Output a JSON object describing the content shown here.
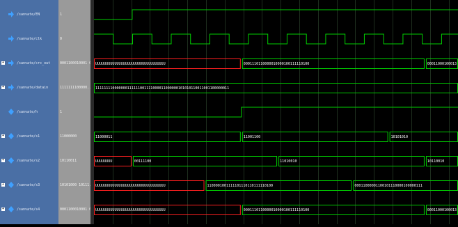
{
  "colors": {
    "wave": "#00d000",
    "undefined_bus": "#ff2020",
    "grid": "#1e2e1e",
    "names_bg": "#4a6fa5",
    "values_bg": "#9a9a9a",
    "icon": "#3fa0ff"
  },
  "signals": [
    {
      "name": "/sanvate/EN",
      "value": "1",
      "expandable": false,
      "icon": "signal-arrow-icon"
    },
    {
      "name": "/sanvate/clk",
      "value": "0",
      "expandable": false,
      "icon": "signal-arrow-icon"
    },
    {
      "name": "/sanvate/crc_out",
      "value": "0001100010001 0...",
      "expandable": true,
      "icon": "signal-arrow-icon"
    },
    {
      "name": "/sanvate/datain",
      "value": "1111111100000...",
      "expandable": true,
      "icon": "signal-arrow-icon"
    },
    {
      "name": "/sanvate/h",
      "value": "1",
      "expandable": false,
      "icon": "signal-diamond-icon"
    },
    {
      "name": "/sanvate/s1",
      "value": "11000000",
      "expandable": true,
      "icon": "signal-diamond-icon"
    },
    {
      "name": "/sanvate/s2",
      "value": "10110011",
      "expandable": true,
      "icon": "signal-diamond-icon"
    },
    {
      "name": "/sanvate/s3",
      "value": "10101000 10111...",
      "expandable": true,
      "icon": "signal-diamond-icon"
    },
    {
      "name": "/sanvate/s4",
      "value": "0001100010001 0...",
      "expandable": true,
      "icon": "signal-diamond-icon"
    }
  ],
  "waves": {
    "EN": {
      "type": "bit",
      "steps": [
        [
          0,
          0
        ],
        [
          0.105,
          1
        ]
      ]
    },
    "clk": {
      "type": "bit",
      "period": 0.1061,
      "start_high": true
    },
    "h": {
      "type": "bit",
      "steps": [
        [
          0,
          0
        ],
        [
          0.405,
          1
        ]
      ]
    },
    "buses": [
      {
        "row": 2,
        "segments": [
          {
            "from": 0,
            "to": 0.405,
            "label": "UUUUUUUUUUUUUUUUUUUUUUUUUUUUUUUUU",
            "undefined": true
          },
          {
            "from": 0.405,
            "to": 0.91,
            "label": "0001110110000010000100111110100",
            "undefined": false
          },
          {
            "from": 0.91,
            "to": 1.0,
            "label": "00011000100013",
            "undefined": false
          }
        ]
      },
      {
        "row": 3,
        "segments": [
          {
            "from": 0,
            "to": 1.0,
            "label": "111111110000000111111001111000011000000101010110011001100000011",
            "undefined": false
          }
        ]
      },
      {
        "row": 5,
        "segments": [
          {
            "from": 0,
            "to": 0.405,
            "label": "11000011",
            "undefined": false
          },
          {
            "from": 0.405,
            "to": 0.81,
            "label": "11001100",
            "undefined": false
          },
          {
            "from": 0.81,
            "to": 1.0,
            "label": "10101010",
            "undefined": false
          }
        ]
      },
      {
        "row": 6,
        "segments": [
          {
            "from": 0,
            "to": 0.105,
            "label": "UUUUUUUU",
            "undefined": true
          },
          {
            "from": 0.105,
            "to": 0.505,
            "label": "00111100",
            "undefined": false
          },
          {
            "from": 0.505,
            "to": 0.91,
            "label": "11010010",
            "undefined": false
          },
          {
            "from": 0.91,
            "to": 1.0,
            "label": "10110010",
            "undefined": false
          }
        ]
      },
      {
        "row": 7,
        "segments": [
          {
            "from": 0,
            "to": 0.305,
            "label": "UUUUUUUUUUUUUUUUUUUUUUUUUUUUUUUUU",
            "undefined": true
          },
          {
            "from": 0.305,
            "to": 0.71,
            "label": "1100001001111101110110111110100",
            "undefined": false
          },
          {
            "from": 0.71,
            "to": 1.0,
            "label": "00011000001100101110000100000111",
            "undefined": false
          }
        ]
      },
      {
        "row": 8,
        "segments": [
          {
            "from": 0,
            "to": 0.405,
            "label": "UUUUUUUUUUUUUUUUUUUUUUUUUUUUUUUUU",
            "undefined": true
          },
          {
            "from": 0.405,
            "to": 0.91,
            "label": "0001110110000010000100111110100",
            "undefined": false
          },
          {
            "from": 0.91,
            "to": 1.0,
            "label": "00011000100013",
            "undefined": false
          }
        ]
      }
    ]
  }
}
